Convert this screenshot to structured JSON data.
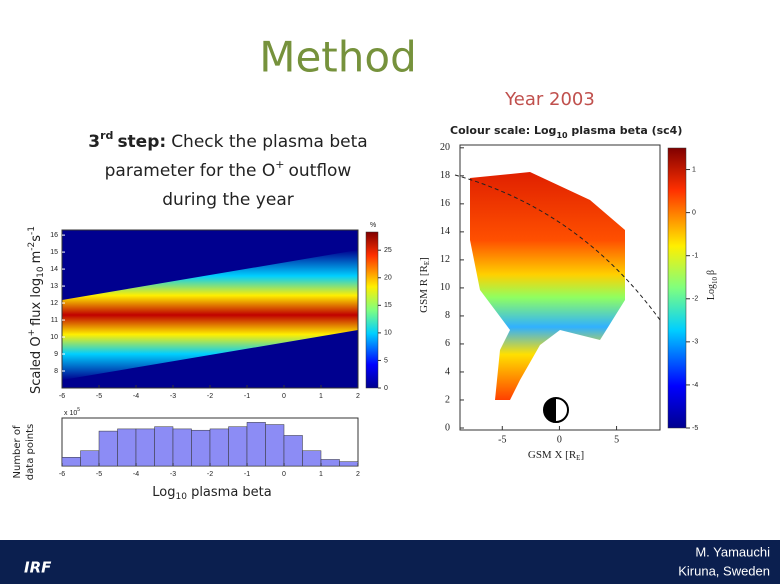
{
  "header": {
    "title": "Method",
    "year": "Year 2003"
  },
  "step": {
    "num": "3",
    "sup": "rd",
    "word": "step:",
    "line1": "Check the plasma beta",
    "line2a": "parameter for the O",
    "line2sup": "+",
    "line2b": "outflow",
    "line3": "during the year"
  },
  "left_chart": {
    "type": "heatmap",
    "ylabel": {
      "a": "Scaled O",
      "sup": "+",
      "b": "flux log",
      "sub": "10",
      "c": "m",
      "sup2": "-2",
      "d": "s",
      "sup3": "-1"
    },
    "xlim": [
      -6,
      2
    ],
    "xticks": [
      -6,
      -5,
      -4,
      -3,
      -2,
      -1,
      0,
      1,
      2
    ],
    "ylim": [
      7,
      16.3
    ],
    "yticks": [
      8,
      9,
      10,
      11,
      12,
      13,
      14,
      15,
      16
    ],
    "colorbar": {
      "unit": "%",
      "ylim": [
        0,
        28.3
      ],
      "ticks": [
        0,
        5,
        10,
        15,
        20,
        25
      ]
    }
  },
  "histogram": {
    "type": "histogram",
    "ylabel1": "Number of",
    "ylabel2": "data points",
    "scale": {
      "a": "x 10",
      "sup": "5"
    },
    "bins": [
      -6,
      -5.5,
      -5,
      -4.5,
      -4,
      -3.5,
      -3,
      -2.5,
      -2,
      -1.5,
      -1,
      -0.5,
      0,
      0.5,
      1,
      1.5,
      2
    ],
    "values": [
      0.2,
      0.35,
      0.8,
      0.85,
      0.85,
      0.9,
      0.85,
      0.82,
      0.85,
      0.9,
      1.0,
      0.95,
      0.7,
      0.35,
      0.15,
      0.1
    ],
    "color": "#8c8cf5",
    "xlim": [
      -6,
      2
    ],
    "xticks": [
      -6,
      -5,
      -4,
      -3,
      -2,
      -1,
      0,
      1,
      2
    ],
    "ylim": [
      0,
      1.1
    ],
    "xlabel": {
      "a": "Log",
      "sub": "10",
      "b": " plasma beta"
    }
  },
  "right_chart": {
    "type": "map",
    "title": {
      "a": "Colour scale: Log",
      "sub": "10",
      "b": " plasma beta (sc4)"
    },
    "xlim": [
      -8.7,
      8.8
    ],
    "xticks": [
      -5,
      0,
      5
    ],
    "ylim": [
      0,
      20.2
    ],
    "yticks": [
      0,
      2,
      4,
      6,
      8,
      10,
      12,
      14,
      16,
      18,
      20
    ],
    "ylabel": {
      "a": "GSM R [R",
      "sub": "E",
      "b": "]"
    },
    "xlabel": {
      "a": "GSM X [R",
      "sub": "E",
      "b": "]"
    },
    "colorbar": {
      "label": {
        "a": "Log",
        "sub": "10",
        "b": "β"
      },
      "ylim": [
        -5,
        1.5
      ],
      "ticks": [
        1,
        0,
        -1,
        -2,
        -3,
        -4,
        -5
      ]
    }
  },
  "footer": {
    "logo": "IRF",
    "author": "M. Yamauchi",
    "place": "Kiruna, Sweden"
  }
}
